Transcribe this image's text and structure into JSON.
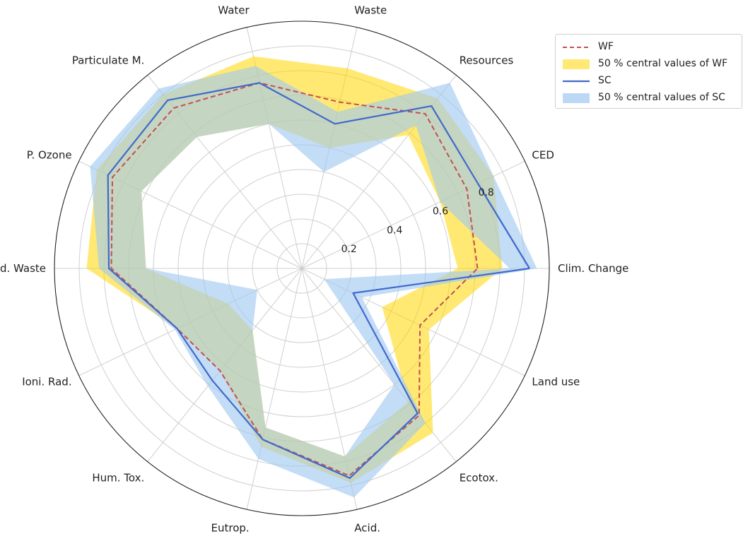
{
  "chart_data": {
    "type": "radar",
    "categories": [
      "Clim. Change",
      "CED",
      "Resources",
      "Waste",
      "Water",
      "Particulate M.",
      "P. Ozone",
      "Rad. Waste",
      "Ioni. Rad.",
      "Hum. Tox.",
      "Eutrop.",
      "Acid.",
      "Ecotox.",
      "Land use"
    ],
    "radial_ticks": [
      "0.2",
      "0.4",
      "0.6",
      "0.8"
    ],
    "rlim": [
      0,
      1
    ],
    "grid": true,
    "legend_position": "top-right",
    "series": [
      {
        "name": "WF",
        "kind": "line",
        "style": "dashed",
        "color": "#c44e52",
        "values": [
          0.71,
          0.74,
          0.8,
          0.69,
          0.77,
          0.83,
          0.85,
          0.77,
          0.56,
          0.53,
          0.71,
          0.86,
          0.76,
          0.53
        ]
      },
      {
        "name": "50 % central values of WF",
        "kind": "band",
        "color": "#ffd700",
        "lower": [
          0.63,
          0.62,
          0.69,
          0.5,
          0.6,
          0.68,
          0.72,
          0.63,
          0.33,
          0.32,
          0.66,
          0.78,
          0.69,
          0.36
        ],
        "upper": [
          0.81,
          0.86,
          0.88,
          0.83,
          0.88,
          0.9,
          0.92,
          0.87,
          0.56,
          0.53,
          0.74,
          0.89,
          0.85,
          0.57
        ]
      },
      {
        "name": "SC",
        "kind": "line",
        "style": "solid",
        "color": "#4169cc",
        "values": [
          0.92,
          0.79,
          0.84,
          0.6,
          0.77,
          0.87,
          0.87,
          0.78,
          0.56,
          0.58,
          0.71,
          0.87,
          0.75,
          0.23
        ]
      },
      {
        "name": "50 % central values of SC",
        "kind": "band",
        "color": "#a0c8f0",
        "lower": [
          0.84,
          0.62,
          0.74,
          0.4,
          0.6,
          0.68,
          0.72,
          0.63,
          0.2,
          0.32,
          0.66,
          0.78,
          0.6,
          0.1
        ],
        "upper": [
          0.95,
          0.86,
          0.96,
          0.65,
          0.84,
          0.93,
          0.95,
          0.82,
          0.57,
          0.61,
          0.79,
          0.95,
          0.8,
          0.27
        ]
      }
    ]
  }
}
